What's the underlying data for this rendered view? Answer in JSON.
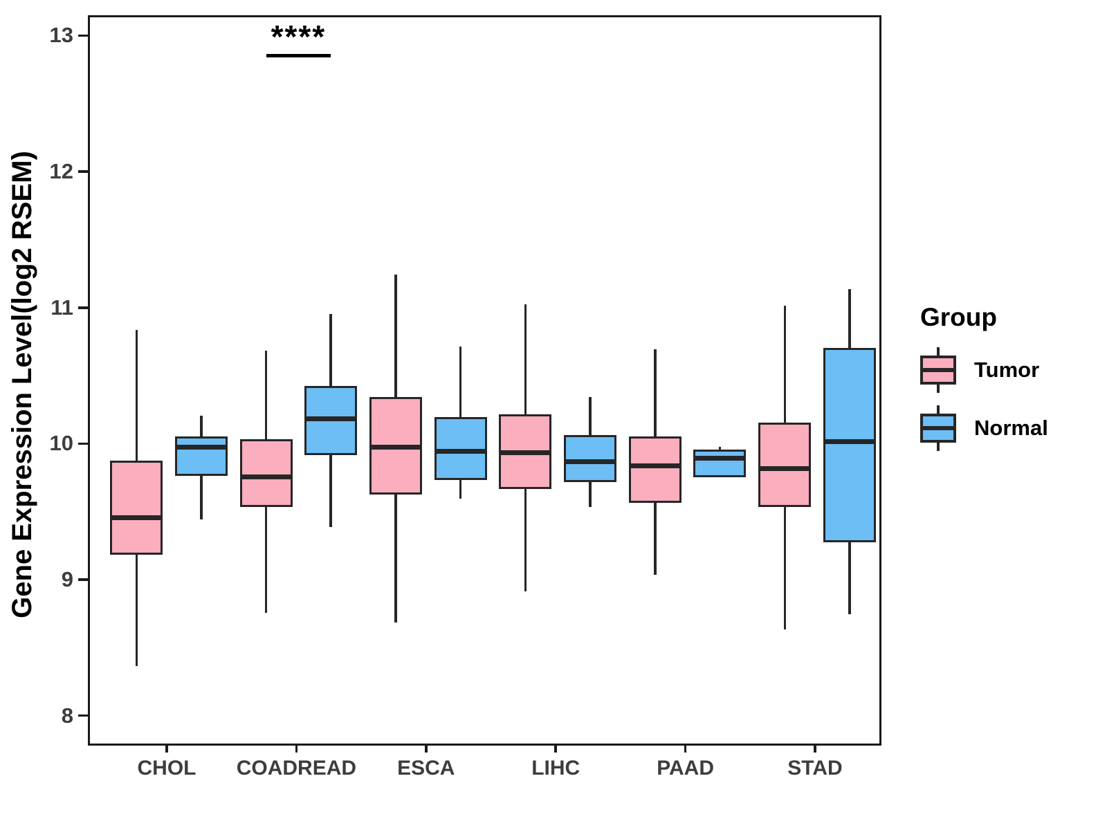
{
  "figure_title": "",
  "chart_data": {
    "type": "boxplot",
    "title": "",
    "xlabel": "",
    "ylabel": "Gene Expression Level(log2 RSEM)",
    "categories": [
      "CHOL",
      "COADREAD",
      "ESCA",
      "LIHC",
      "PAAD",
      "STAD"
    ],
    "y_ticks": [
      "8",
      "9",
      "10",
      "11",
      "12",
      "13"
    ],
    "ylim": [
      7.81,
      13.15
    ],
    "grid": false,
    "legend": {
      "title": "Group",
      "position": "right"
    },
    "series": [
      {
        "name": "Tumor",
        "color": "#FBAEBE",
        "boxes": [
          {
            "category": "CHOL",
            "whisker_low": 8.38,
            "q1": 9.2,
            "median": 9.47,
            "q3": 9.89,
            "whisker_high": 10.85
          },
          {
            "category": "COADREAD",
            "whisker_low": 8.77,
            "q1": 9.55,
            "median": 9.77,
            "q3": 10.05,
            "whisker_high": 10.7
          },
          {
            "category": "ESCA",
            "whisker_low": 8.7,
            "q1": 9.64,
            "median": 9.99,
            "q3": 10.36,
            "whisker_high": 11.26
          },
          {
            "category": "LIHC",
            "whisker_low": 8.93,
            "q1": 9.68,
            "median": 9.95,
            "q3": 10.23,
            "whisker_high": 11.04
          },
          {
            "category": "PAAD",
            "whisker_low": 9.05,
            "q1": 9.58,
            "median": 9.85,
            "q3": 10.07,
            "whisker_high": 10.71
          },
          {
            "category": "STAD",
            "whisker_low": 8.65,
            "q1": 9.55,
            "median": 9.83,
            "q3": 10.17,
            "whisker_high": 11.03
          }
        ]
      },
      {
        "name": "Normal",
        "color": "#6DBEF4",
        "boxes": [
          {
            "category": "CHOL",
            "whisker_low": 9.46,
            "q1": 9.78,
            "median": 9.99,
            "q3": 10.07,
            "whisker_high": 10.22
          },
          {
            "category": "COADREAD",
            "whisker_low": 9.4,
            "q1": 9.93,
            "median": 10.2,
            "q3": 10.44,
            "whisker_high": 10.97
          },
          {
            "category": "ESCA",
            "whisker_low": 9.61,
            "q1": 9.75,
            "median": 9.96,
            "q3": 10.21,
            "whisker_high": 10.73
          },
          {
            "category": "LIHC",
            "whisker_low": 9.55,
            "q1": 9.73,
            "median": 9.88,
            "q3": 10.08,
            "whisker_high": 10.36
          },
          {
            "category": "PAAD",
            "whisker_low": 9.77,
            "q1": 9.77,
            "median": 9.91,
            "q3": 9.97,
            "whisker_high": 9.99
          },
          {
            "category": "STAD",
            "whisker_low": 8.76,
            "q1": 9.29,
            "median": 10.03,
            "q3": 10.72,
            "whisker_high": 11.15
          }
        ]
      }
    ],
    "annotations": [
      {
        "category": "COADREAD",
        "label": "****",
        "line_y": 12.88
      }
    ]
  }
}
